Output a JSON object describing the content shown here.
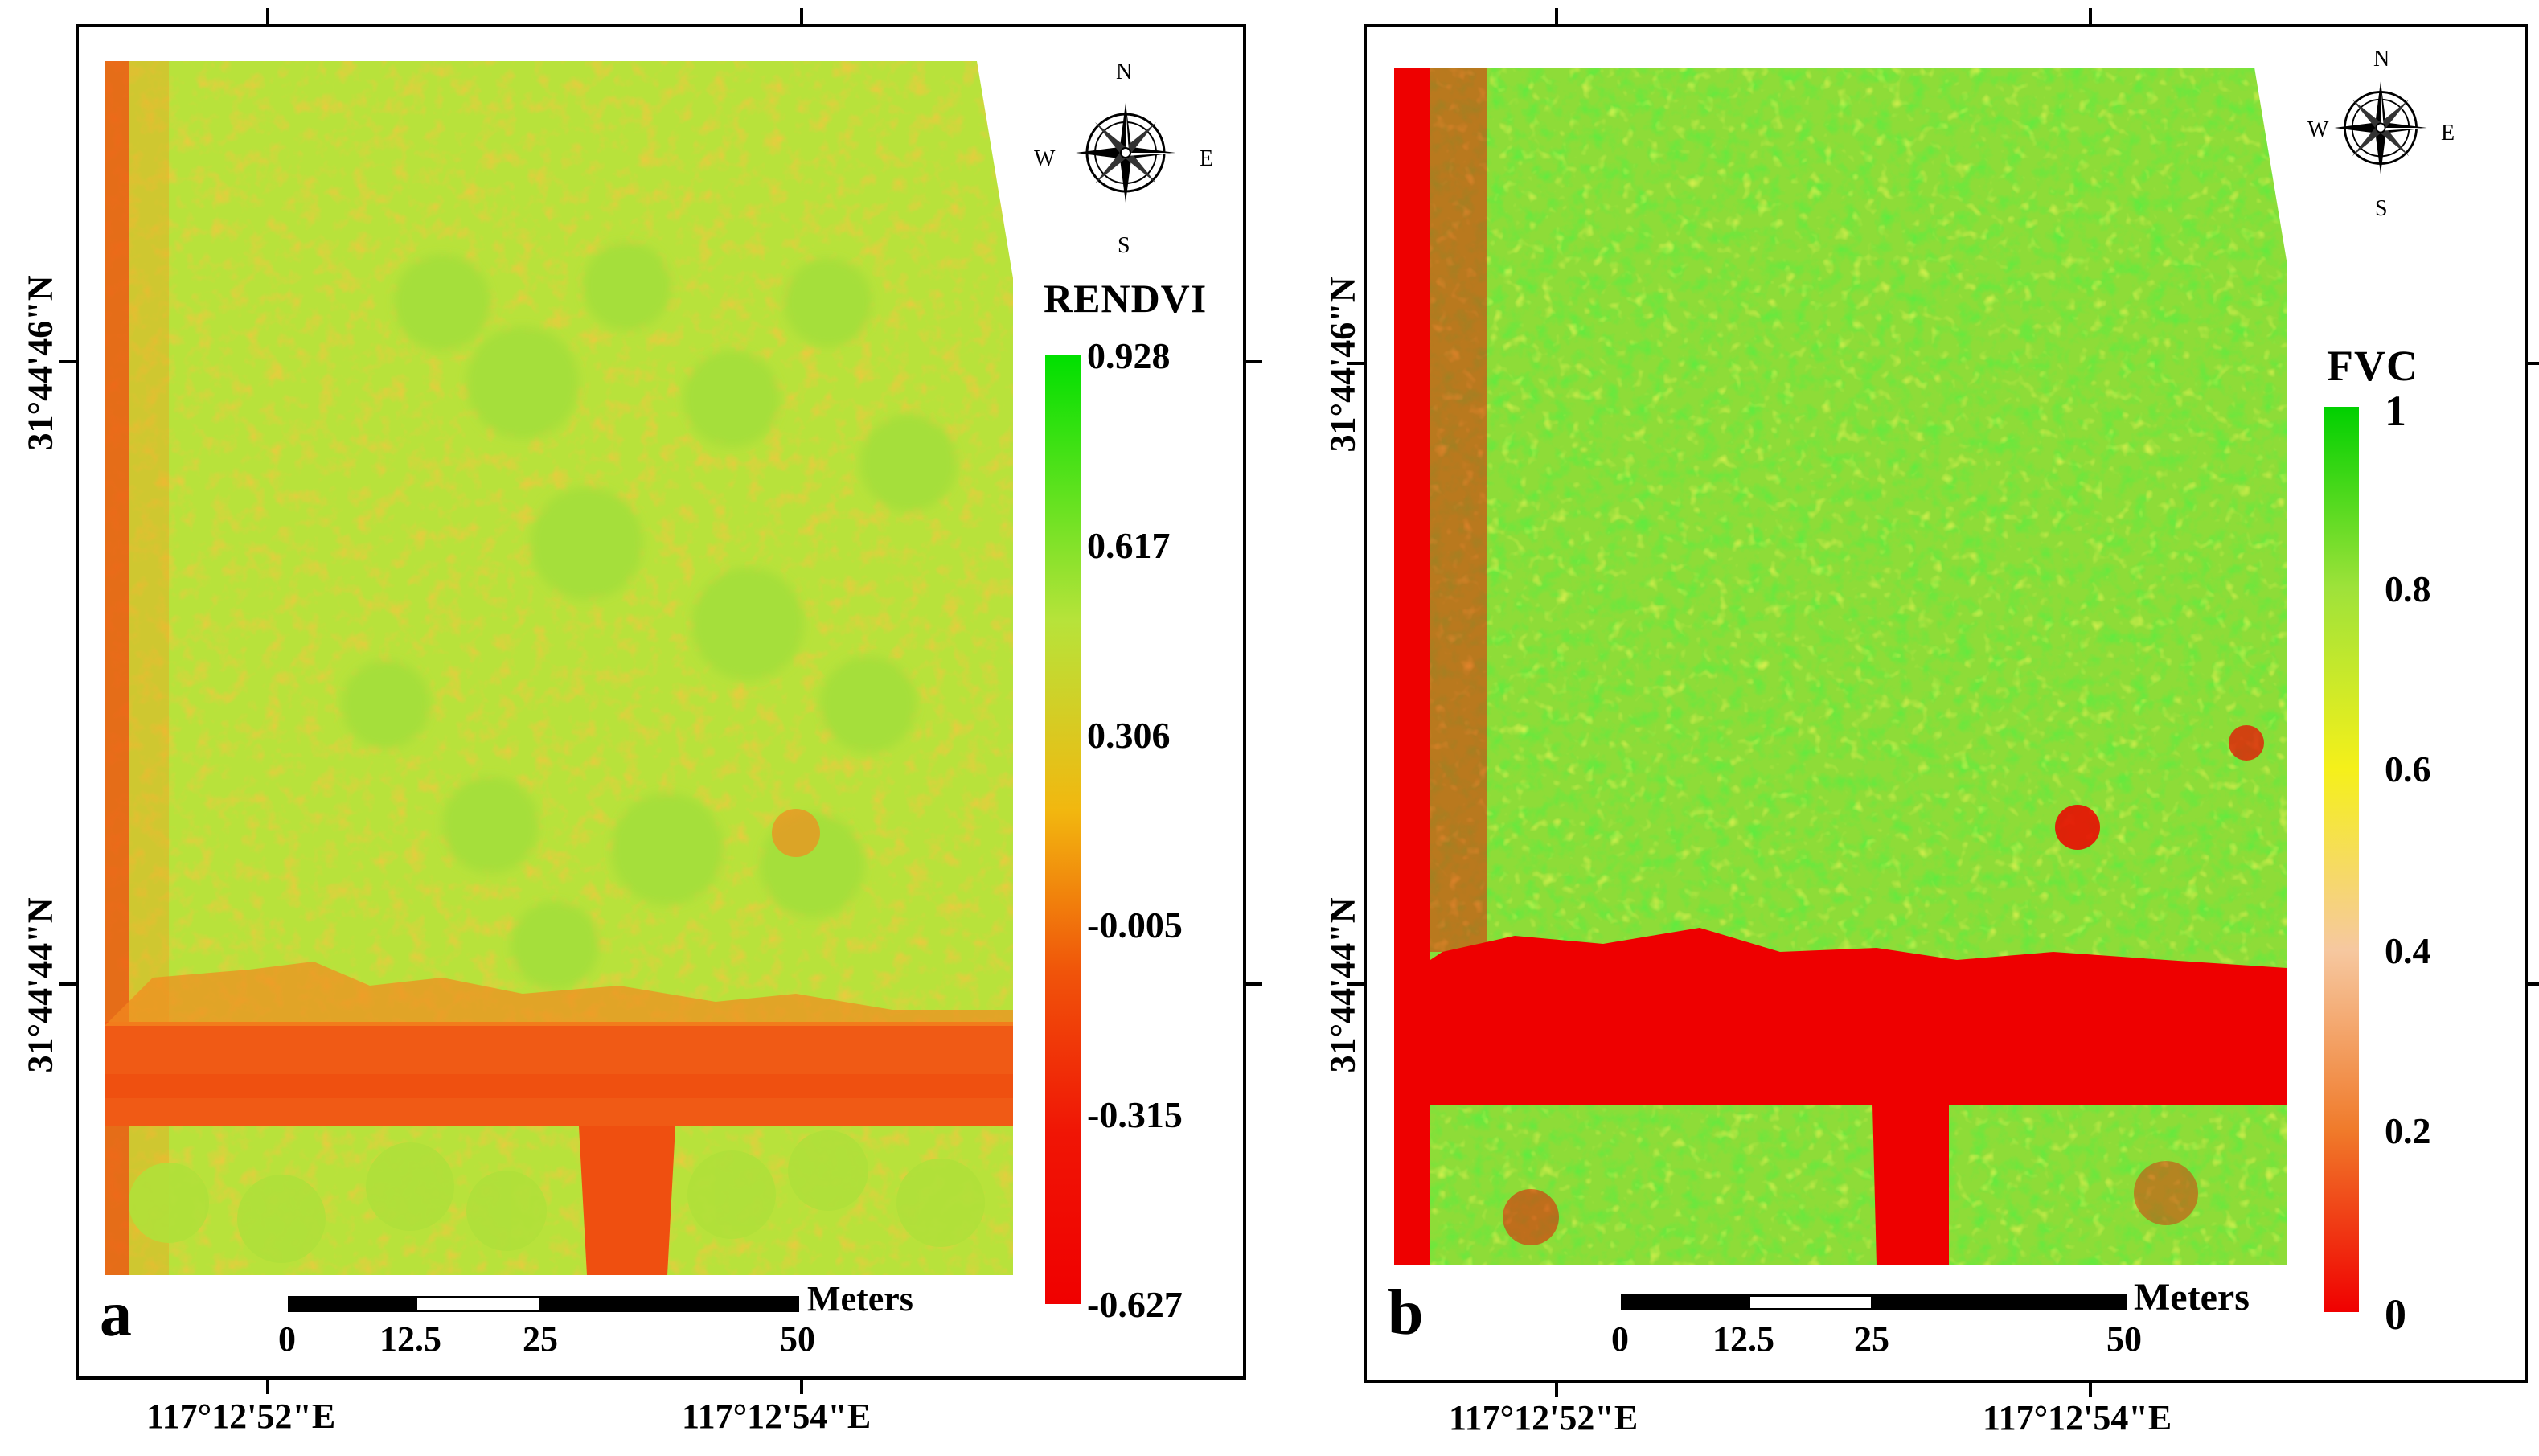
{
  "panels": [
    {
      "letter": "a",
      "colorbar_title": "RENDVI",
      "colorbar_ticks": [
        "0.928",
        "0.617",
        "0.306",
        "-0.005",
        "-0.315",
        "-0.627"
      ],
      "colorbar_colors": [
        "#00e000",
        "#b7e33a",
        "#f2b70f",
        "#f0540a",
        "#f01505",
        "#f00000"
      ],
      "lat_labels": [
        "31°44'46\"N",
        "31°44'44\"N"
      ],
      "lon_labels": [
        "117°12'52\"E",
        "117°12'54\"E"
      ],
      "scalebar": {
        "unit": "Meters",
        "labels": [
          "0",
          "12.5",
          "25",
          "50"
        ]
      },
      "compass": {
        "n": "N",
        "s": "S",
        "e": "E",
        "w": "W"
      }
    },
    {
      "letter": "b",
      "colorbar_title": "FVC",
      "colorbar_ticks": [
        "1",
        "0.8",
        "0.6",
        "0.4",
        "0.2",
        "0"
      ],
      "colorbar_colors": [
        "#00d000",
        "#9ee23a",
        "#f5f01a",
        "#f6c8a0",
        "#f07a2a",
        "#f00000"
      ],
      "lat_labels": [
        "31°44'46\"N",
        "31°44'44\"N"
      ],
      "lon_labels": [
        "117°12'52\"E",
        "117°12'54\"E"
      ],
      "scalebar": {
        "unit": "Meters",
        "labels": [
          "0",
          "12.5",
          "25",
          "50"
        ]
      },
      "compass": {
        "n": "N",
        "s": "S",
        "e": "E",
        "w": "W"
      }
    }
  ]
}
